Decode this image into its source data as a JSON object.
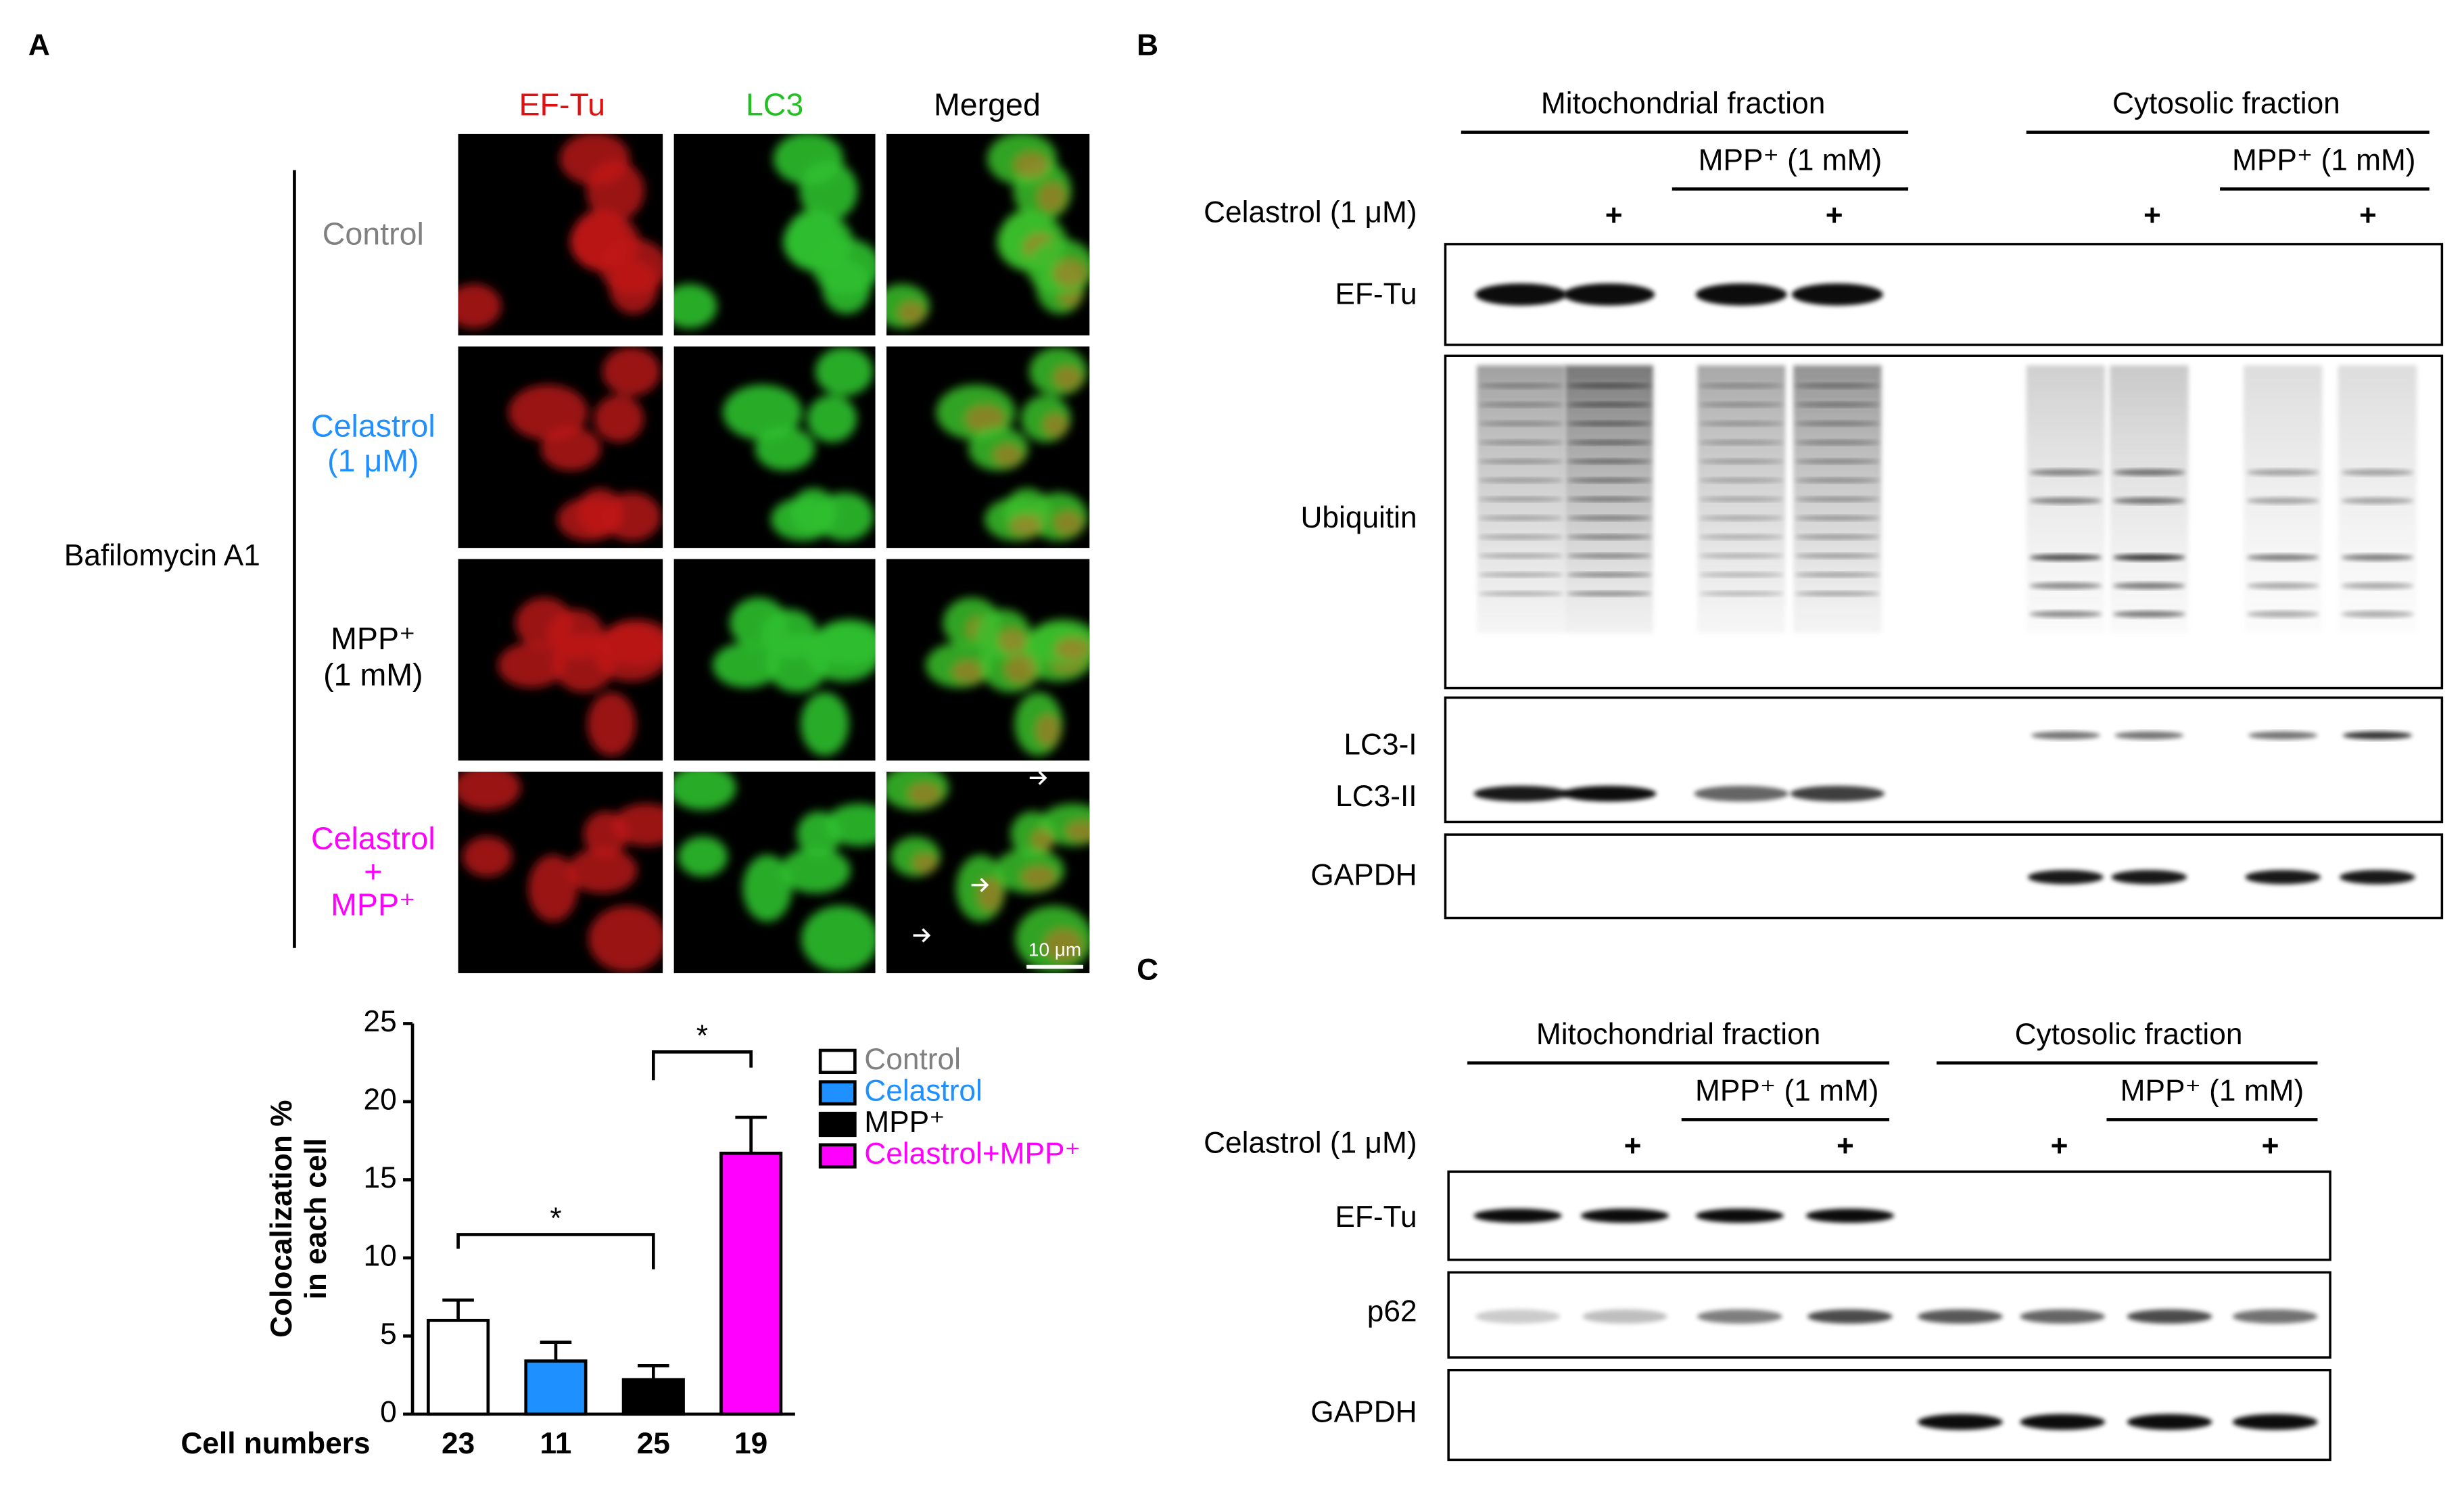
{
  "panel_a": {
    "label": "A",
    "columns": [
      "EF-Tu",
      "LC3",
      "Merged"
    ],
    "rows": [
      [
        "Control"
      ],
      [
        "Celastrol",
        "(1 μM)"
      ],
      [
        "MPP⁺",
        "(1 mM)"
      ],
      [
        "Celastrol",
        "+",
        "MPP⁺"
      ]
    ],
    "treatment": "Bafilomycin A1",
    "scale_bar": "10 μm"
  },
  "chart_data": {
    "type": "bar",
    "ylabel": [
      "Colocalization %",
      "in each cell"
    ],
    "xlabel": "Cell numbers",
    "categories": [
      "23",
      "11",
      "25",
      "19"
    ],
    "values": [
      6,
      3.4,
      2.2,
      16.7
    ],
    "errors": [
      1.3,
      1.2,
      0.9,
      2.3
    ],
    "colors": [
      "#ffffff",
      "#1e90ff",
      "#000000",
      "#ff00ff"
    ],
    "legend": {
      "labels": [
        "Control",
        "Celastrol",
        "MPP⁺",
        "Celastrol+MPP⁺"
      ],
      "text_colors": [
        "#808080",
        "#1e90ff",
        "#000000",
        "#ff00ff"
      ]
    },
    "ylim": [
      0,
      25
    ],
    "yticks": [
      0,
      5,
      10,
      15,
      20,
      25
    ],
    "annotations": [
      "*",
      "*"
    ]
  },
  "panel_b": {
    "label": "B",
    "fractions": [
      "Mitochondrial fraction",
      "Cytosolic fraction"
    ],
    "mpp": [
      "MPP⁺ (1 mM)",
      "MPP⁺ (1 mM)"
    ],
    "celastrol": "Celastrol (1 μM)",
    "plus": [
      "+",
      "+",
      "+",
      "+"
    ],
    "blots": [
      "EF-Tu",
      "Ubiquitin",
      "LC3-I",
      "LC3-II",
      "GAPDH"
    ]
  },
  "panel_c": {
    "label": "C",
    "fractions": [
      "Mitochondrial fraction",
      "Cytosolic fraction"
    ],
    "mpp": [
      "MPP⁺ (1 mM)",
      "MPP⁺ (1 mM)"
    ],
    "celastrol": "Celastrol (1 μM)",
    "plus": [
      "+",
      "+",
      "+",
      "+"
    ],
    "blots": [
      "EF-Tu",
      "p62",
      "GAPDH"
    ]
  }
}
